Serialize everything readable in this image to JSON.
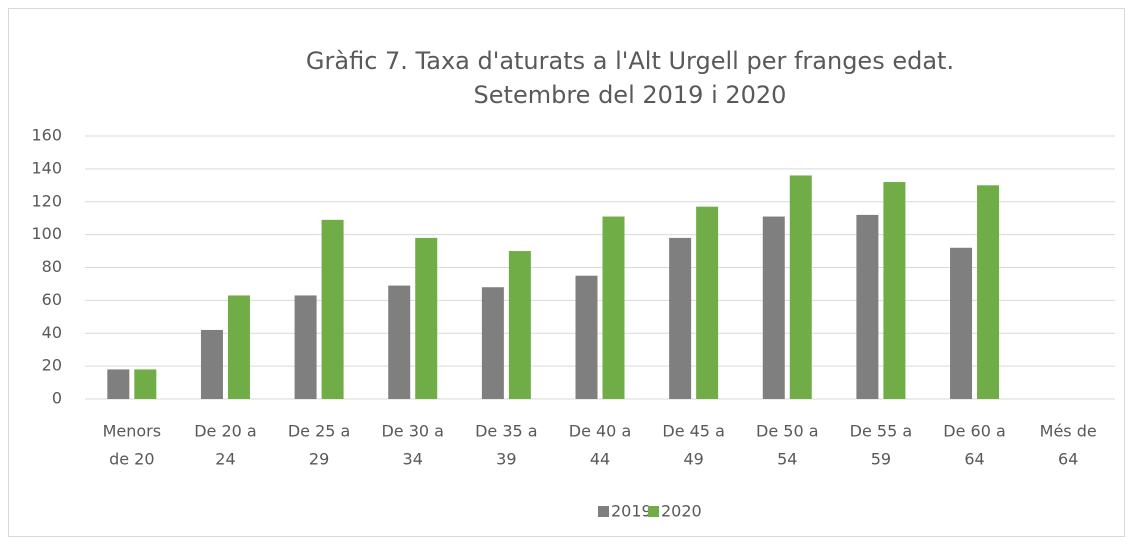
{
  "chart_data": {
    "type": "bar",
    "title": [
      "Gràfic 7. Taxa d'aturats a l'Alt Urgell per franges edat.",
      "Setembre del 2019 i 2020"
    ],
    "categories": [
      [
        "Menors",
        "de 20"
      ],
      [
        "De 20 a",
        "24"
      ],
      [
        "De 25 a",
        "29"
      ],
      [
        "De 30 a",
        "34"
      ],
      [
        "De 35 a",
        "39"
      ],
      [
        "De 40 a",
        "44"
      ],
      [
        "De 45 a",
        "49"
      ],
      [
        "De 50 a",
        "54"
      ],
      [
        "De 55 a",
        "59"
      ],
      [
        "De 60 a",
        "64"
      ],
      [
        "Més de",
        "64"
      ]
    ],
    "series": [
      {
        "name": "2019",
        "color": "#7f7f7f",
        "values": [
          18,
          42,
          63,
          69,
          68,
          75,
          98,
          111,
          112,
          92,
          null
        ]
      },
      {
        "name": "2020",
        "color": "#70ad47",
        "values": [
          18,
          63,
          109,
          98,
          90,
          111,
          117,
          136,
          132,
          130,
          null
        ]
      }
    ],
    "ylim": [
      0,
      160
    ],
    "yticks": [
      0,
      20,
      40,
      60,
      80,
      100,
      120,
      140,
      160
    ],
    "grid": true,
    "legend": "bottom"
  }
}
